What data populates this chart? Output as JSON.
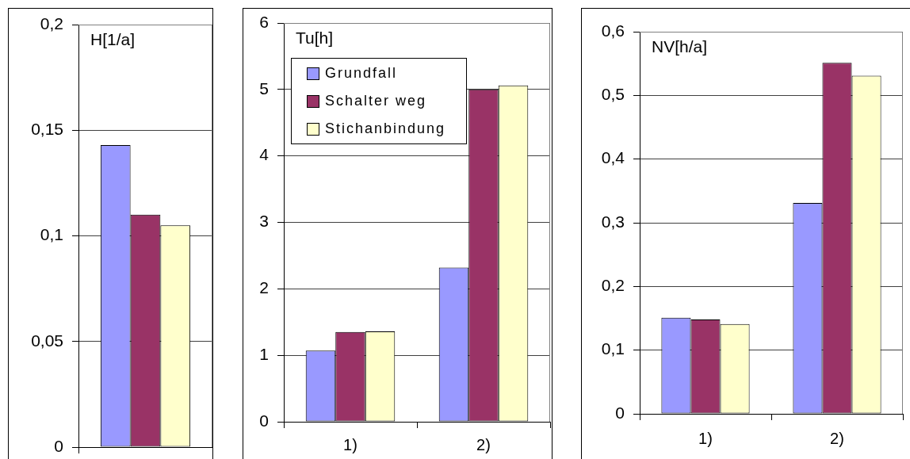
{
  "chart_data": [
    {
      "type": "bar",
      "title": "H[1/a]",
      "categories": [
        null
      ],
      "series": [
        {
          "color": "#9999ff",
          "values": [
            0.143
          ]
        },
        {
          "color": "#993366",
          "values": [
            0.11
          ]
        },
        {
          "color": "#ffffcc",
          "values": [
            0.105
          ]
        }
      ],
      "ylim": [
        0,
        0.2
      ],
      "yticks": [
        0,
        {
          "value": 0.05,
          "label": "0,05"
        },
        {
          "value": 0.1,
          "label": "0,1"
        },
        {
          "value": 0.15,
          "label": "0,15"
        },
        {
          "value": 0.2,
          "label": "0,2"
        }
      ],
      "grid": "y"
    },
    {
      "type": "bar",
      "title": "Tu[h]",
      "categories": [
        "1)",
        "2)"
      ],
      "series": [
        {
          "name": "Grundfall",
          "color": "#9999ff",
          "values": [
            1.07,
            2.32
          ]
        },
        {
          "name": "Schalter weg",
          "color": "#993366",
          "values": [
            1.35,
            5.0
          ]
        },
        {
          "name": "Stichanbindung",
          "color": "#ffffcc",
          "values": [
            1.36,
            5.06
          ]
        }
      ],
      "ylim": [
        0,
        6
      ],
      "yticks": [
        0,
        1,
        2,
        3,
        4,
        5,
        6
      ],
      "grid": "y",
      "legend": "top left"
    },
    {
      "type": "bar",
      "title": "NV[h/a]",
      "categories": [
        "1)",
        "2)"
      ],
      "series": [
        {
          "color": "#9999ff",
          "values": [
            0.151,
            0.331
          ]
        },
        {
          "color": "#993366",
          "values": [
            0.148,
            0.551
          ]
        },
        {
          "color": "#ffffcc",
          "values": [
            0.141,
            0.531
          ]
        }
      ],
      "ylim": [
        0,
        0.6
      ],
      "yticks": [
        0,
        {
          "value": 0.1,
          "label": "0,1"
        },
        {
          "value": 0.2,
          "label": "0,2"
        },
        {
          "value": 0.3,
          "label": "0,3"
        },
        {
          "value": 0.4,
          "label": "0,4"
        },
        {
          "value": 0.5,
          "label": "0,5"
        },
        {
          "value": 0.6,
          "label": "0,6"
        }
      ],
      "grid": "y"
    }
  ]
}
